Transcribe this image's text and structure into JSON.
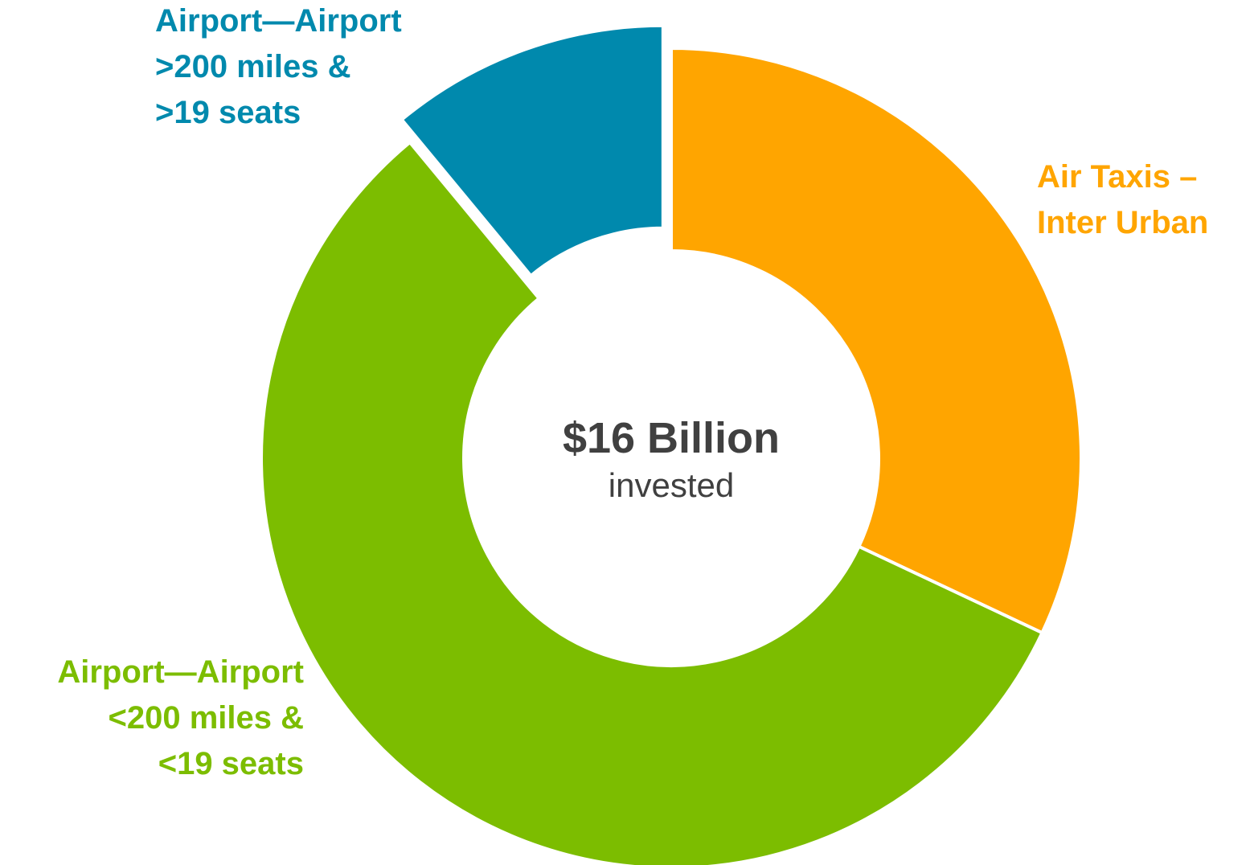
{
  "chart_data": {
    "type": "donut",
    "categories": [
      [
        "Air Taxis –",
        "Inter Urban"
      ],
      [
        "Airport—Airport",
        "<200 miles &",
        "<19 seats"
      ],
      [
        "Airport—Airport",
        ">200 miles &",
        ">19 seats"
      ]
    ],
    "values": [
      32,
      57,
      11
    ],
    "colors": [
      "#ffa500",
      "#7cbd00",
      "#0089ad"
    ],
    "exploded": [
      false,
      false,
      true
    ],
    "center_title": "$16 Billion",
    "center_subtitle": "invested"
  }
}
